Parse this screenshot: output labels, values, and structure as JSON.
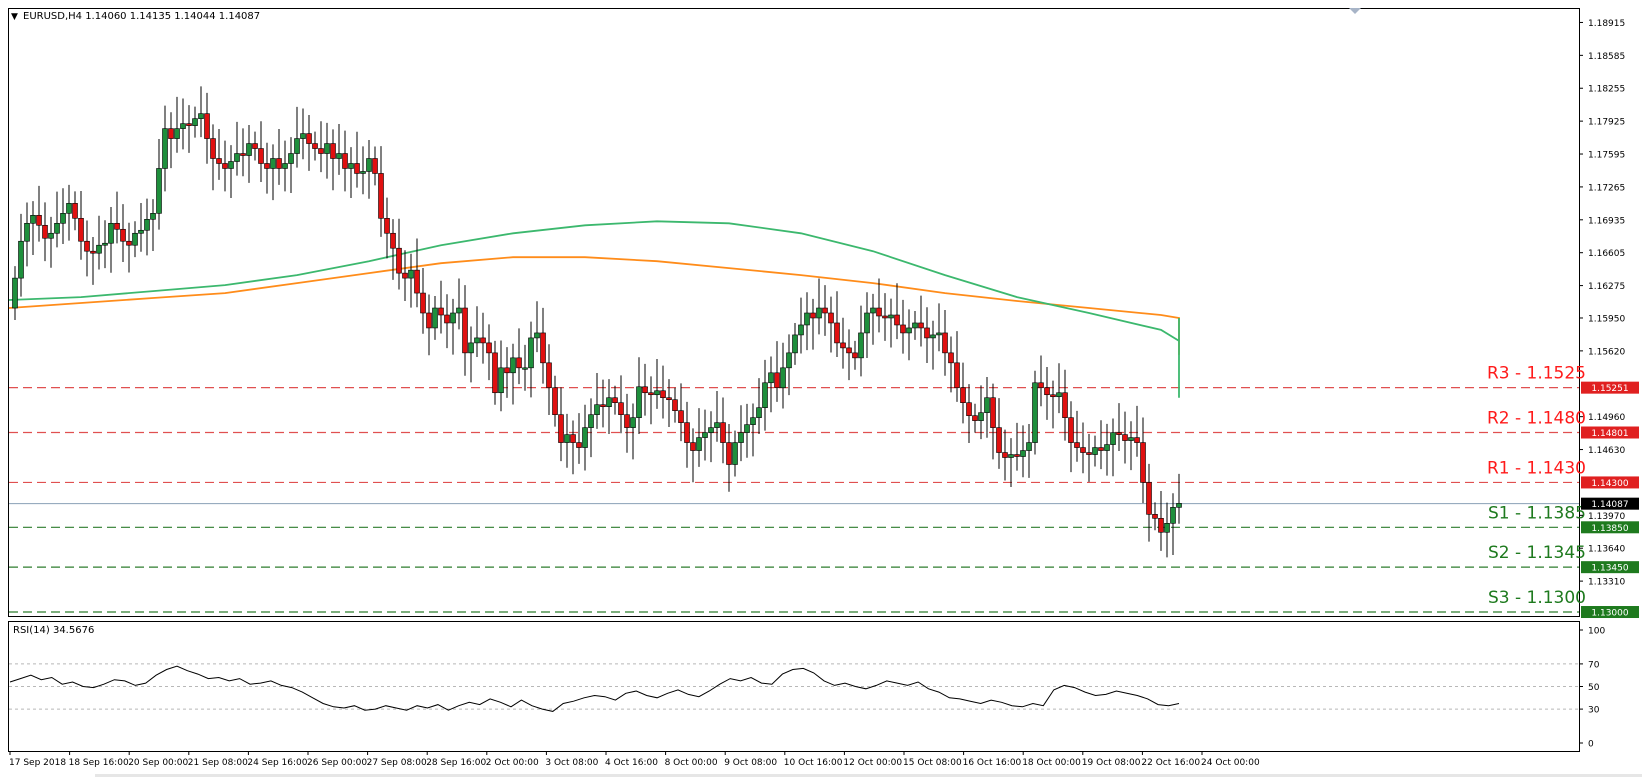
{
  "chart_data": [
    {
      "type": "candlestick",
      "symbol_info": "EURUSD,H4  1.14060 1.14135 1.14044 1.14087",
      "ylim": [
        1.1296,
        1.1905
      ],
      "price_ticks": [
        "1.18915",
        "1.18585",
        "1.18255",
        "1.17925",
        "1.17595",
        "1.17265",
        "1.16935",
        "1.16605",
        "1.16275",
        "1.15950",
        "1.15620",
        "1.14960",
        "1.14630",
        "1.13970",
        "1.13640",
        "1.13310"
      ],
      "current_price": "1.14087",
      "levels": [
        {
          "label": "R3 - 1.1525",
          "value": 1.15251,
          "tag": "1.15251",
          "kind": "resistance"
        },
        {
          "label": "R2 - 1.1480",
          "value": 1.14801,
          "tag": "1.14801",
          "kind": "resistance"
        },
        {
          "label": "R1 - 1.1430",
          "value": 1.143,
          "tag": "1.14300",
          "kind": "resistance"
        },
        {
          "label": "S1 - 1.1385",
          "value": 1.1385,
          "tag": "1.13850",
          "kind": "support"
        },
        {
          "label": "S2 - 1.1345",
          "value": 1.1345,
          "tag": "1.13450",
          "kind": "support"
        },
        {
          "label": "S3 - 1.1300",
          "value": 1.13,
          "tag": "1.13000",
          "kind": "support"
        }
      ],
      "x_labels": [
        "17 Sep 2018",
        "18 Sep 16:00",
        "20 Sep 00:00",
        "21 Sep 08:00",
        "24 Sep 16:00",
        "26 Sep 00:00",
        "27 Sep 08:00",
        "28 Sep 16:00",
        "2 Oct 00:00",
        "3 Oct 08:00",
        "4 Oct 16:00",
        "8 Oct 00:00",
        "9 Oct 08:00",
        "10 Oct 16:00",
        "12 Oct 00:00",
        "15 Oct 08:00",
        "16 Oct 16:00",
        "18 Oct 00:00",
        "19 Oct 08:00",
        "22 Oct 16:00",
        "24 Oct 00:00"
      ],
      "candles_per_label": 8,
      "closes": [
        1.1635,
        1.1672,
        1.169,
        1.1698,
        1.1688,
        1.1675,
        1.168,
        1.169,
        1.17,
        1.171,
        1.1695,
        1.1672,
        1.1662,
        1.166,
        1.1668,
        1.167,
        1.169,
        1.1684,
        1.1672,
        1.1668,
        1.168,
        1.1683,
        1.1694,
        1.17,
        1.1745,
        1.1785,
        1.1775,
        1.1785,
        1.179,
        1.1788,
        1.1795,
        1.18,
        1.1775,
        1.1755,
        1.175,
        1.1745,
        1.1752,
        1.176,
        1.1758,
        1.177,
        1.1765,
        1.175,
        1.1745,
        1.1755,
        1.1745,
        1.175,
        1.176,
        1.1775,
        1.178,
        1.177,
        1.1765,
        1.176,
        1.177,
        1.1755,
        1.176,
        1.1745,
        1.175,
        1.174,
        1.1742,
        1.1755,
        1.174,
        1.1695,
        1.168,
        1.1665,
        1.164,
        1.1635,
        1.1643,
        1.162,
        1.16,
        1.1585,
        1.1605,
        1.1598,
        1.159,
        1.16,
        1.1605,
        1.156,
        1.157,
        1.1575,
        1.157,
        1.156,
        1.152,
        1.1545,
        1.154,
        1.1555,
        1.1545,
        1.1545,
        1.1575,
        1.158,
        1.155,
        1.1525,
        1.1498,
        1.147,
        1.1478,
        1.147,
        1.1465,
        1.1485,
        1.1498,
        1.1508,
        1.1506,
        1.1515,
        1.151,
        1.1498,
        1.1485,
        1.1495,
        1.1526,
        1.152,
        1.1518,
        1.1522,
        1.1515,
        1.1513,
        1.1502,
        1.149,
        1.147,
        1.1462,
        1.1475,
        1.148,
        1.1485,
        1.149,
        1.147,
        1.1448,
        1.147,
        1.148,
        1.1488,
        1.1495,
        1.1505,
        1.153,
        1.154,
        1.1525,
        1.1545,
        1.156,
        1.1578,
        1.1588,
        1.16,
        1.1595,
        1.1605,
        1.16,
        1.159,
        1.157,
        1.1565,
        1.156,
        1.1555,
        1.158,
        1.16,
        1.1605,
        1.1597,
        1.1595,
        1.1598,
        1.1588,
        1.158,
        1.1585,
        1.159,
        1.1585,
        1.1575,
        1.1578,
        1.158,
        1.156,
        1.155,
        1.1525,
        1.151,
        1.1497,
        1.1492,
        1.15,
        1.1515,
        1.1485,
        1.146,
        1.1455,
        1.1458,
        1.1456,
        1.1462,
        1.147,
        1.153,
        1.1525,
        1.1518,
        1.1516,
        1.152,
        1.1495,
        1.147,
        1.1465,
        1.146,
        1.1458,
        1.1465,
        1.1462,
        1.1468,
        1.148,
        1.1478,
        1.1472,
        1.1475,
        1.147,
        1.143,
        1.1398,
        1.1394,
        1.138,
        1.1389,
        1.1405,
        1.1409
      ],
      "ma_green": [
        1.1613,
        1.1616,
        1.1622,
        1.1628,
        1.1638,
        1.1652,
        1.1668,
        1.168,
        1.1688,
        1.1692,
        1.169,
        1.168,
        1.1662,
        1.1638,
        1.1616,
        1.16,
        1.1583,
        1.1572,
        1.1568,
        1.1572,
        1.1575,
        1.1578,
        1.159,
        1.1595,
        1.1594,
        1.1575,
        1.1555,
        1.153,
        1.1515
      ],
      "ma_orange": [
        1.1605,
        1.161,
        1.1615,
        1.162,
        1.163,
        1.164,
        1.165,
        1.1656,
        1.1656,
        1.1652,
        1.1645,
        1.1638,
        1.163,
        1.162,
        1.1612,
        1.1605,
        1.1598,
        1.1595,
        1.1594,
        1.1593,
        1.1592,
        1.159,
        1.1587,
        1.1583,
        1.158,
        1.1575,
        1.1568,
        1.1558
      ],
      "colors": {
        "bull": "#1e8f3c",
        "bear": "#e01010",
        "ma_green": "#3cb86e",
        "ma_orange": "#ff8c1a",
        "resistance": "#e05050",
        "support": "#2e7d2e",
        "level_text_r": "#ff1a1a",
        "level_text_s": "#1e7a1e"
      }
    },
    {
      "type": "line",
      "title": "RSI(14) 34.5676",
      "ylim": [
        0,
        100
      ],
      "y_ticks": [
        "100",
        "70",
        "50",
        "30",
        "0"
      ],
      "values": [
        54,
        57,
        60,
        56,
        58,
        52,
        54,
        50,
        49,
        52,
        56,
        55,
        51,
        53,
        60,
        65,
        68,
        64,
        61,
        57,
        58,
        55,
        57,
        52,
        53,
        55,
        51,
        49,
        45,
        40,
        35,
        32,
        31,
        33,
        29,
        30,
        33,
        31,
        29,
        33,
        31,
        34,
        29,
        33,
        36,
        34,
        39,
        36,
        32,
        38,
        33,
        30,
        28,
        35,
        37,
        40,
        42,
        41,
        38,
        44,
        46,
        42,
        40,
        44,
        47,
        43,
        41,
        46,
        52,
        57,
        55,
        58,
        53,
        52,
        61,
        65,
        66,
        62,
        55,
        51,
        53,
        50,
        48,
        51,
        55,
        53,
        51,
        54,
        48,
        45,
        40,
        39,
        37,
        35,
        38,
        36,
        33,
        32,
        35,
        33,
        47,
        51,
        49,
        45,
        42,
        43,
        46,
        44,
        42,
        39,
        34,
        33,
        35
      ]
    }
  ]
}
